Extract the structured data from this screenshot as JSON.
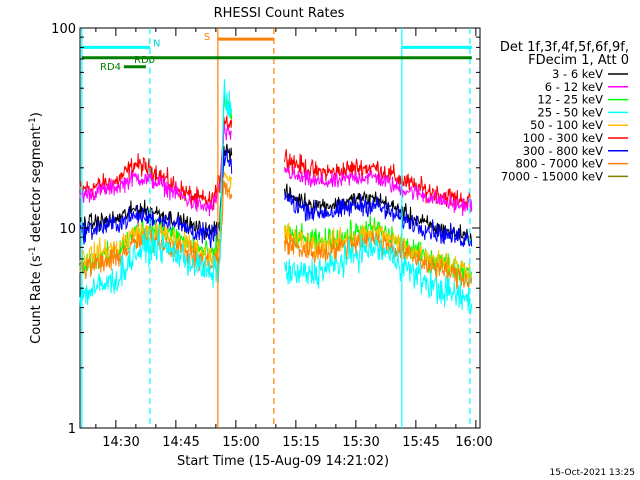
{
  "chart_data": {
    "type": "line",
    "title": "RHESSI Count Rates",
    "xlabel": "Start Time (15-Aug-09 14:21:02)",
    "ylabel": "Count Rate (s⁻¹ detector segment⁻¹)",
    "ylabel_parts": {
      "main": "Count Rate (s",
      "sup1": "-1",
      "mid": " detector segment",
      "sup2": "-1",
      "end": ")"
    },
    "yscale": "log",
    "ylim": [
      1,
      100
    ],
    "y_ticks": [
      1,
      10,
      100
    ],
    "y_tick_labels": [
      "1",
      "10",
      "100"
    ],
    "xlim": [
      "14:21:02",
      "16:01:02"
    ],
    "x_ticks": [
      "14:30",
      "14:45",
      "15:00",
      "15:15",
      "15:30",
      "15:45",
      "16:00"
    ],
    "timestamp": "15-Oct-2021 13:25",
    "legend": {
      "placement": "right",
      "header": [
        "Det 1f,3f,4f,5f,6f,9f,",
        "FDecim 1, Att 0"
      ],
      "entries": [
        {
          "label": "3 - 6 keV",
          "color": "#000000"
        },
        {
          "label": "6 - 12 keV",
          "color": "#ff00ff"
        },
        {
          "label": "12 - 25 keV",
          "color": "#00ff00"
        },
        {
          "label": "25 - 50 keV",
          "color": "#00ffff"
        },
        {
          "label": "50 - 100 keV",
          "color": "#ffbf00"
        },
        {
          "label": "100 - 300 keV",
          "color": "#ff0000"
        },
        {
          "label": "300 - 800 keV",
          "color": "#0000ff"
        },
        {
          "label": "800 - 7000 keV",
          "color": "#ff8000"
        },
        {
          "label": "7000 - 15000 keV",
          "color": "#808000"
        }
      ]
    },
    "gaps": [
      [
        "14:59:00",
        "15:12:00"
      ]
    ],
    "series": [
      {
        "name": "100 - 300 keV",
        "color": "#ff0000",
        "x": [
          "14:21",
          "14:30",
          "14:35",
          "14:40",
          "14:45",
          "14:50",
          "14:54",
          "14:56",
          "14:57",
          "15:12",
          "15:15",
          "15:20",
          "15:25",
          "15:30",
          "15:35",
          "15:40",
          "15:45",
          "15:50",
          "15:55",
          "15:59"
        ],
        "y": [
          15.5,
          17,
          21,
          19,
          16,
          14,
          13.5,
          17,
          35,
          23,
          21,
          19,
          19,
          20,
          20,
          18,
          16,
          15,
          14,
          13.5
        ],
        "noise": 0.06
      },
      {
        "name": "6 - 12 keV",
        "color": "#ff00ff",
        "x": [
          "14:21",
          "14:30",
          "14:35",
          "14:40",
          "14:45",
          "14:50",
          "14:54",
          "14:56",
          "14:57",
          "15:12",
          "15:15",
          "15:20",
          "15:25",
          "15:30",
          "15:35",
          "15:40",
          "15:45",
          "15:50",
          "15:55",
          "15:59"
        ],
        "y": [
          14.5,
          16,
          18,
          17,
          15,
          13,
          12.5,
          16,
          30,
          20,
          18,
          17,
          17,
          18,
          18,
          16,
          15,
          14,
          13,
          13
        ],
        "noise": 0.05
      },
      {
        "name": "3 - 6 keV",
        "color": "#000000",
        "x": [
          "14:21",
          "14:30",
          "14:35",
          "14:40",
          "14:45",
          "14:50",
          "14:54",
          "14:56",
          "14:57",
          "15:12",
          "15:15",
          "15:20",
          "15:25",
          "15:30",
          "15:35",
          "15:40",
          "15:45",
          "15:50",
          "15:55",
          "15:59"
        ],
        "y": [
          10.5,
          11,
          12.5,
          12,
          11,
          10,
          9.5,
          11,
          25,
          15,
          14,
          13,
          13,
          14,
          14,
          12.5,
          11,
          10,
          9.5,
          9
        ],
        "noise": 0.05
      },
      {
        "name": "300 - 800 keV",
        "color": "#0000ff",
        "x": [
          "14:21",
          "14:30",
          "14:35",
          "14:40",
          "14:45",
          "14:50",
          "14:54",
          "14:56",
          "14:57",
          "15:12",
          "15:15",
          "15:20",
          "15:25",
          "15:30",
          "15:35",
          "15:40",
          "15:45",
          "15:50",
          "15:55",
          "15:59"
        ],
        "y": [
          9.5,
          10.5,
          11.5,
          11,
          10.5,
          9.5,
          9,
          10,
          22,
          14.5,
          13,
          12,
          12,
          13,
          13,
          11.5,
          10.5,
          9.5,
          9,
          8.8
        ],
        "noise": 0.06
      },
      {
        "name": "12 - 25 keV",
        "color": "#00ff00",
        "x": [
          "14:21",
          "14:30",
          "14:35",
          "14:40",
          "14:45",
          "14:50",
          "14:54",
          "14:56",
          "14:57",
          "15:12",
          "15:15",
          "15:20",
          "15:25",
          "15:30",
          "15:35",
          "15:40",
          "15:45",
          "15:50",
          "15:55",
          "15:59"
        ],
        "y": [
          6.5,
          7.5,
          9.5,
          10,
          9,
          8,
          7.2,
          8.5,
          45,
          9.5,
          9,
          8.5,
          8.7,
          9.5,
          10,
          8.7,
          7.5,
          6.8,
          6.3,
          6
        ],
        "noise": 0.07
      },
      {
        "name": "50 - 100 keV",
        "color": "#ffbf00",
        "x": [
          "14:21",
          "14:30",
          "14:35",
          "14:40",
          "14:45",
          "14:50",
          "14:54",
          "14:56",
          "14:57",
          "15:12",
          "15:15",
          "15:20",
          "15:25",
          "15:30",
          "15:35",
          "15:40",
          "15:45",
          "15:50",
          "15:55",
          "15:59"
        ],
        "y": [
          7,
          8,
          9.5,
          9.5,
          8.7,
          7.8,
          7,
          8,
          18,
          9.5,
          8.8,
          8.2,
          8.5,
          9,
          9.5,
          8.5,
          7.5,
          7,
          6.5,
          6
        ],
        "noise": 0.07
      },
      {
        "name": "800 - 7000 keV",
        "color": "#ff8000",
        "x": [
          "14:21",
          "14:30",
          "14:35",
          "14:40",
          "14:45",
          "14:50",
          "14:54",
          "14:56",
          "14:57",
          "15:12",
          "15:15",
          "15:20",
          "15:25",
          "15:30",
          "15:35",
          "15:40",
          "15:45",
          "15:50",
          "15:55",
          "15:59"
        ],
        "y": [
          6.2,
          7,
          8.5,
          8.8,
          8,
          7,
          6.5,
          7.2,
          16,
          8.5,
          8,
          7.5,
          7.8,
          8.5,
          8.8,
          7.8,
          7,
          6.3,
          5.8,
          5.5
        ],
        "noise": 0.07
      },
      {
        "name": "25 - 50 keV",
        "color": "#00ffff",
        "x": [
          "14:21",
          "14:30",
          "14:35",
          "14:40",
          "14:45",
          "14:50",
          "14:54",
          "14:56",
          "14:57",
          "15:12",
          "15:15",
          "15:20",
          "15:25",
          "15:30",
          "15:35",
          "15:40",
          "15:45",
          "15:50",
          "15:55",
          "15:59"
        ],
        "y": [
          4.6,
          5.5,
          7.5,
          8.3,
          7.5,
          6.5,
          5.8,
          6.5,
          48,
          6.2,
          5.8,
          6,
          6.5,
          7.5,
          8,
          7,
          5.8,
          5,
          4.6,
          4.3
        ],
        "noise": 0.09
      }
    ],
    "vertical_markers": [
      {
        "x": "14:21:30",
        "color": "#00ffff",
        "style": "solid"
      },
      {
        "x": "14:38:30",
        "color": "#00ffff",
        "style": "dashed"
      },
      {
        "x": "14:55:30",
        "color": "#ff8000",
        "style": "solid"
      },
      {
        "x": "15:09:30",
        "color": "#ff8000",
        "style": "dashed"
      },
      {
        "x": "15:41:30",
        "color": "#00ffff",
        "style": "solid"
      },
      {
        "x": "15:58:30",
        "color": "#00ffff",
        "style": "dashed"
      }
    ],
    "horizontal_bars": [
      {
        "label": "N",
        "color": "#00ffff",
        "start": "14:21:30",
        "end": "14:38:30",
        "y": 80
      },
      {
        "label": "",
        "color": "#00ffff",
        "start": "15:41:30",
        "end": "15:59:00",
        "y": 80
      },
      {
        "label": "",
        "color": "#007f00",
        "start": "14:21:30",
        "end": "15:59:00",
        "y": 71
      },
      {
        "label": "S",
        "color": "#ff8000",
        "start": "14:55:30",
        "end": "15:09:30",
        "y": 88
      },
      {
        "label": "RD4",
        "color": "#007f00",
        "start": "14:32:00",
        "end": "14:37:30",
        "y": 64
      },
      {
        "label": "RD0",
        "color": "",
        "start": "",
        "end": "",
        "y": 69
      }
    ]
  }
}
